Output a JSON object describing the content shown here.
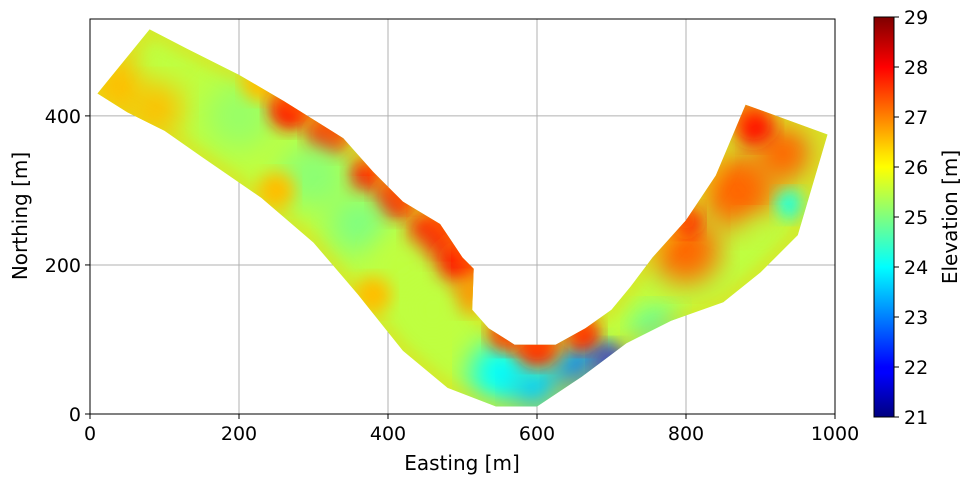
{
  "chart_data": {
    "type": "heatmap",
    "title": "",
    "xlabel": "Easting [m]",
    "ylabel": "Northing [m]",
    "xlim": [
      0,
      1000
    ],
    "ylim": [
      0,
      530
    ],
    "x_ticks": [
      "0",
      "200",
      "400",
      "600",
      "800",
      "1000"
    ],
    "y_ticks": [
      "0",
      "200",
      "400"
    ],
    "grid": true,
    "colormap": "jet",
    "colorbar": {
      "label": "Elevation [m]",
      "range": [
        21,
        29
      ],
      "ticks": [
        "21",
        "22",
        "23",
        "24",
        "25",
        "26",
        "27",
        "28",
        "29"
      ]
    },
    "river_outline": {
      "left_bank": [
        [
          10,
          430
        ],
        [
          80,
          516
        ],
        [
          130,
          490
        ],
        [
          200,
          455
        ],
        [
          260,
          420
        ],
        [
          340,
          370
        ],
        [
          380,
          325
        ],
        [
          420,
          285
        ],
        [
          470,
          255
        ],
        [
          500,
          210
        ],
        [
          515,
          195
        ],
        [
          513,
          140
        ],
        [
          535,
          115
        ],
        [
          570,
          93
        ],
        [
          625,
          93
        ],
        [
          665,
          115
        ],
        [
          700,
          140
        ],
        [
          725,
          170
        ],
        [
          755,
          210
        ],
        [
          800,
          260
        ],
        [
          840,
          320
        ],
        [
          880,
          415
        ],
        [
          990,
          375
        ]
      ],
      "right_bank": [
        [
          950,
          240
        ],
        [
          900,
          190
        ],
        [
          850,
          150
        ],
        [
          780,
          125
        ],
        [
          720,
          95
        ],
        [
          660,
          50
        ],
        [
          600,
          10
        ],
        [
          545,
          10
        ],
        [
          480,
          35
        ],
        [
          420,
          85
        ],
        [
          360,
          160
        ],
        [
          300,
          230
        ],
        [
          230,
          290
        ],
        [
          150,
          345
        ],
        [
          100,
          380
        ],
        [
          50,
          405
        ]
      ],
      "levels_m": {
        "outer_bank_high": 27.8,
        "inner_left_bank": 27.0,
        "channel_typical": 25.5,
        "thalweg_low": 23.0,
        "deepest_pool": 22.3,
        "upstream_end": 26.5,
        "downstream_end": 27.2
      }
    }
  }
}
